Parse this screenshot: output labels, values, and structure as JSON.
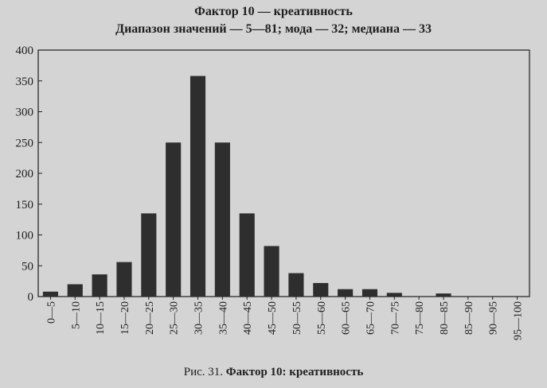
{
  "chart_data": {
    "type": "bar",
    "title": "Фактор 10 — креативность",
    "subtitle": "Диапазон значений — 5—81; мода — 32; медиана — 33",
    "caption_prefix": "Рис. 31.",
    "caption_title": "Фактор 10: креативность",
    "ylim": [
      0,
      400
    ],
    "yticks": [
      0,
      50,
      100,
      150,
      200,
      250,
      300,
      350,
      400
    ],
    "ytick_labels": [
      "0",
      "50",
      "100",
      "150",
      "200",
      "250",
      "300",
      "350",
      "400"
    ],
    "grid": false,
    "categories": [
      "0—5",
      "5—10",
      "10—15",
      "15—20",
      "20—25",
      "25—30",
      "30—35",
      "35—40",
      "40—45",
      "45—50",
      "50—55",
      "55—60",
      "60—65",
      "65—70",
      "70—75",
      "75—80",
      "80—85",
      "85—90",
      "90—95",
      "95—100"
    ],
    "values": [
      8,
      20,
      36,
      56,
      135,
      250,
      358,
      250,
      135,
      82,
      38,
      22,
      12,
      12,
      6,
      0,
      5,
      0,
      0,
      0
    ],
    "bar_color": "#2e2e2e"
  }
}
